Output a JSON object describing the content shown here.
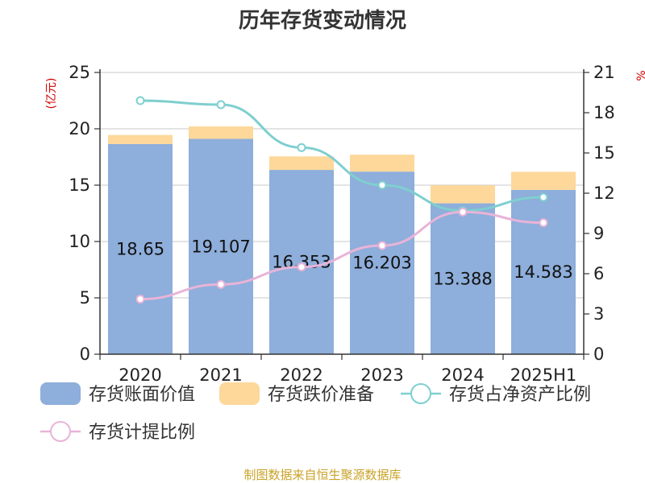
{
  "chart_data": {
    "type": "bar",
    "title": "历年存货变动情况",
    "categories": [
      "2020",
      "2021",
      "2022",
      "2023",
      "2024",
      "2025H1"
    ],
    "y_left": {
      "unit": "(亿元)",
      "range": [
        0,
        25
      ],
      "ticks": [
        0,
        5,
        10,
        15,
        20,
        25
      ]
    },
    "y_right": {
      "unit": "%",
      "range": [
        0,
        21
      ],
      "ticks": [
        0,
        3,
        6,
        9,
        12,
        15,
        18,
        21
      ]
    },
    "bar_series": [
      {
        "name": "存货账面价值",
        "color": "#8eaedb",
        "values": [
          18.65,
          19.107,
          16.353,
          16.203,
          13.388,
          14.583
        ],
        "labels": [
          "18.65",
          "19.107",
          "16.353",
          "16.203",
          "13.388",
          "14.583"
        ]
      },
      {
        "name": "存货跌价准备",
        "color": "#fdd89a",
        "values": [
          0.8,
          1.1,
          1.2,
          1.5,
          1.6,
          1.6
        ]
      }
    ],
    "line_series": [
      {
        "name": "存货占净资产比例",
        "color": "#7fcfcf",
        "axis": "right",
        "values": [
          18.9,
          18.6,
          15.4,
          12.6,
          10.7,
          11.7
        ]
      },
      {
        "name": "存货计提比例",
        "color": "#e8b4d8",
        "axis": "right",
        "values": [
          4.1,
          5.2,
          6.5,
          8.1,
          10.6,
          9.8
        ]
      }
    ],
    "grid": true,
    "legend_position": "bottom"
  },
  "footer": {
    "source": "制图数据来自恒生聚源数据库"
  }
}
